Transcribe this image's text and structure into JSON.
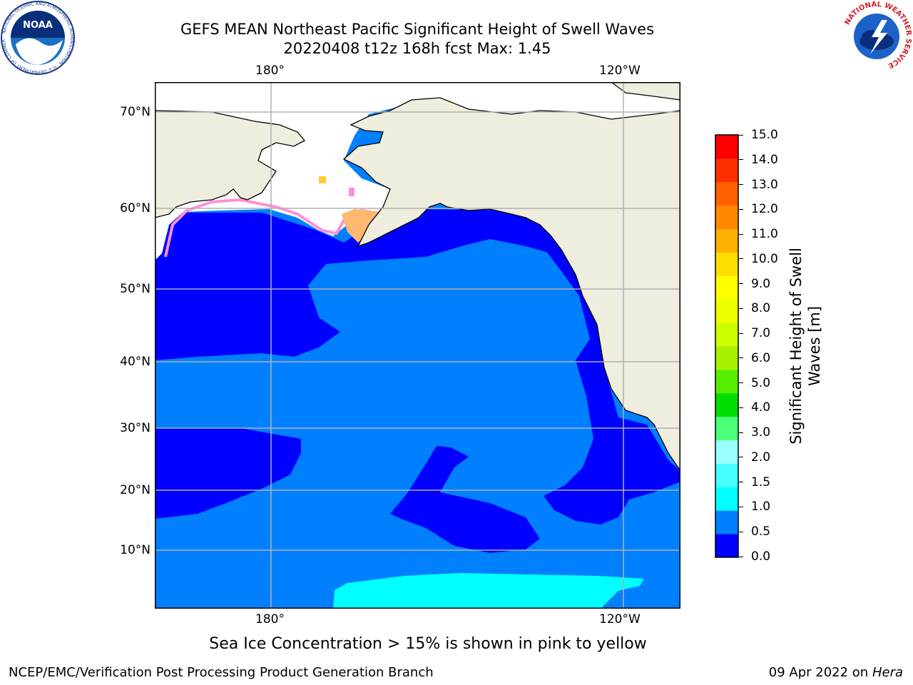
{
  "title": {
    "line1": "GEFS MEAN Northeast Pacific Significant Height of Swell Waves",
    "line2": "20220408 t12z 168h fcst   Max: 1.45"
  },
  "map": {
    "lon_ticks": [
      "180°",
      "120°W"
    ],
    "lat_ticks": [
      "70°N",
      "60°N",
      "50°N",
      "40°N",
      "30°N",
      "20°N",
      "10°N"
    ],
    "colors": {
      "land": "#efedde",
      "ocean_0_5": "#0000ff",
      "ocean_0_5_1": "#0080ff",
      "ocean_1_1_5": "#00ffff",
      "ice": "#ff8fd8",
      "gridline": "#b0b0b0"
    }
  },
  "colorbar": {
    "label_line1": "Significant Height of Swell",
    "label_line2": "Waves [m]",
    "ticks": [
      "15.0",
      "14.0",
      "13.0",
      "12.0",
      "11.0",
      "10.0",
      "9.0",
      "8.0",
      "7.0",
      "6.0",
      "5.0",
      "4.0",
      "3.0",
      "2.0",
      "1.5",
      "1.0",
      "0.5",
      "0.0"
    ],
    "colors": [
      "#0000ff",
      "#0080ff",
      "#00ffff",
      "#47ffff",
      "#99ffff",
      "#4cff7a",
      "#00dd00",
      "#55ee00",
      "#a8f000",
      "#ccff00",
      "#eeff00",
      "#ffff00",
      "#ffdd00",
      "#ffb000",
      "#ff8800",
      "#ff6000",
      "#ff3000",
      "#ff0000"
    ]
  },
  "note": "Sea Ice Concentration > 15% is shown in pink to yellow",
  "footer": {
    "left": "NCEP/EMC/Verification Post Processing Product Generation Branch",
    "right_prefix": "09 Apr 2022 on ",
    "right_host": "Hera"
  },
  "logos": {
    "noaa": "NOAA",
    "noaa_ring": "NATIONAL OCEANIC AND ATMOSPHERIC ADMINISTRATION · U.S. DEPARTMENT OF COMMERCE",
    "nws_ring": "NATIONAL WEATHER SERVICE"
  }
}
